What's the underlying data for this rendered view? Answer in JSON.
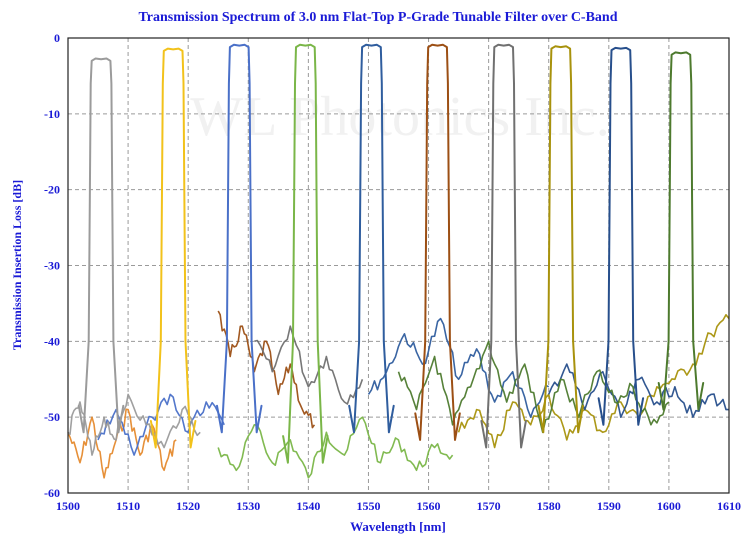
{
  "chart_data": {
    "type": "line",
    "title": "Transmission Spectrum of 3.0 nm Flat-Top P-Grade Tunable Filter over C-Band",
    "xlabel": "Wavelength [nm]",
    "ylabel": "Transmission Insertion Loss [dB]",
    "xlim": [
      1500,
      1610
    ],
    "ylim": [
      -60,
      0
    ],
    "x_ticks": [
      "1500",
      "1510",
      "1520",
      "1530",
      "1540",
      "1550",
      "1560",
      "1570",
      "1580",
      "1590",
      "1600",
      "1610"
    ],
    "y_ticks": [
      "0",
      "-10",
      "-20",
      "-30",
      "-40",
      "-50",
      "-60"
    ],
    "grid": true,
    "watermark": "WL Photonics Inc.",
    "series": [
      {
        "color": "#9b9b9b",
        "center": 1505.5,
        "peak": -2.8,
        "width": 3.0,
        "floor": -50
      },
      {
        "color": "#f2c21b",
        "center": 1517.5,
        "peak": -1.5,
        "width": 3.0,
        "floor": -52
      },
      {
        "color": "#4a70c8",
        "center": 1528.5,
        "peak": -1.0,
        "width": 3.0,
        "floor": -50
      },
      {
        "color": "#7ab648",
        "center": 1539.5,
        "peak": -1.0,
        "width": 3.0,
        "floor": -54
      },
      {
        "color": "#2f5d9e",
        "center": 1550.5,
        "peak": -1.0,
        "width": 3.0,
        "floor": -50
      },
      {
        "color": "#9c4f14",
        "center": 1561.5,
        "peak": -1.0,
        "width": 3.0,
        "floor": -51
      },
      {
        "color": "#707070",
        "center": 1572.5,
        "peak": -1.0,
        "width": 3.0,
        "floor": -52
      },
      {
        "color": "#a8920c",
        "center": 1582.0,
        "peak": -1.2,
        "width": 3.0,
        "floor": -50
      },
      {
        "color": "#274f8c",
        "center": 1592.0,
        "peak": -1.4,
        "width": 3.0,
        "floor": -49
      },
      {
        "color": "#4d7a2e",
        "center": 1602.0,
        "peak": -2.0,
        "width": 3.0,
        "floor": -47
      }
    ],
    "noise_traces": [
      {
        "color": "#e58a2e",
        "x": [
          1500,
          1502,
          1504,
          1506,
          1508,
          1510,
          1512,
          1514,
          1516,
          1518
        ],
        "y": [
          -52,
          -56,
          -50,
          -58,
          -53,
          -49,
          -55,
          -51,
          -57,
          -53
        ]
      },
      {
        "color": "#7ab648",
        "x": [
          1525,
          1528,
          1531,
          1534,
          1537,
          1540,
          1543,
          1546,
          1549,
          1552,
          1555,
          1558,
          1561,
          1564
        ],
        "y": [
          -54,
          -57,
          -51,
          -56,
          -53,
          -58,
          -52,
          -55,
          -50,
          -56,
          -53,
          -57,
          -54,
          -55
        ]
      },
      {
        "color": "#9c4f14",
        "x": [
          1525,
          1527,
          1529,
          1531,
          1533,
          1535,
          1537,
          1539,
          1541
        ],
        "y": [
          -36,
          -42,
          -38,
          -44,
          -40,
          -47,
          -43,
          -49,
          -51
        ]
      },
      {
        "color": "#707070",
        "x": [
          1531,
          1534,
          1537,
          1540,
          1543,
          1546,
          1549
        ],
        "y": [
          -40,
          -44,
          -38,
          -46,
          -42,
          -48,
          -45
        ]
      },
      {
        "color": "#2f5d9e",
        "x": [
          1550,
          1553,
          1556,
          1559,
          1562,
          1565,
          1568,
          1571,
          1574,
          1577,
          1580
        ],
        "y": [
          -47,
          -44,
          -39,
          -43,
          -37,
          -45,
          -41,
          -48,
          -44,
          -50,
          -46
        ]
      },
      {
        "color": "#a8920c",
        "x": [
          1565,
          1568,
          1571,
          1574,
          1577,
          1580,
          1583,
          1586,
          1589,
          1592,
          1595,
          1598,
          1601,
          1604,
          1607,
          1610
        ],
        "y": [
          -52,
          -49,
          -54,
          -48,
          -51,
          -47,
          -53,
          -49,
          -52,
          -48,
          -50,
          -46,
          -45,
          -43,
          -39,
          -37
        ]
      },
      {
        "color": "#274f8c",
        "x": [
          1580,
          1583,
          1586,
          1589,
          1592,
          1595,
          1598,
          1601,
          1604,
          1607,
          1610
        ],
        "y": [
          -47,
          -43,
          -49,
          -44,
          -50,
          -45,
          -48,
          -46,
          -50,
          -47,
          -49
        ]
      },
      {
        "color": "#4d7a2e",
        "x": [
          1555,
          1558,
          1561,
          1564,
          1567,
          1570,
          1573,
          1576,
          1579,
          1582,
          1585,
          1588,
          1591,
          1594,
          1597,
          1600
        ],
        "y": [
          -44,
          -49,
          -42,
          -51,
          -46,
          -40,
          -48,
          -43,
          -52,
          -45,
          -50,
          -44,
          -48,
          -46,
          -51,
          -48
        ]
      },
      {
        "color": "#4a70c8",
        "x": [
          1505,
          1508,
          1511,
          1514,
          1517,
          1520,
          1523,
          1526
        ],
        "y": [
          -53,
          -49,
          -55,
          -50,
          -47,
          -52,
          -48,
          -51
        ]
      },
      {
        "color": "#9b9b9b",
        "x": [
          1500,
          1502,
          1504,
          1506,
          1508,
          1510,
          1513,
          1516,
          1519,
          1522
        ],
        "y": [
          -52,
          -48,
          -55,
          -50,
          -53,
          -47,
          -51,
          -54,
          -49,
          -52
        ]
      }
    ]
  }
}
